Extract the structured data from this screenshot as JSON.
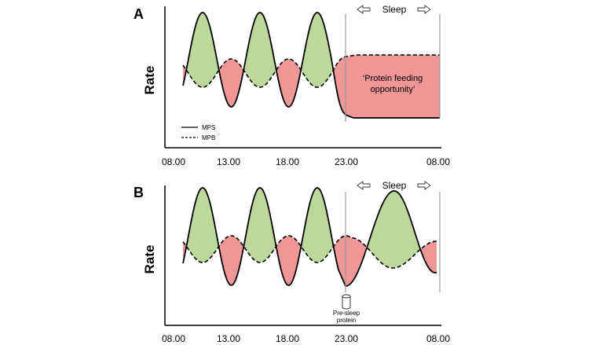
{
  "chart_data": [
    {
      "panel": "A",
      "type": "area",
      "ylabel": "Rate",
      "x_ticks": [
        "08.00",
        "13.00",
        "18.00",
        "23.00",
        "08.00"
      ],
      "sleep_label": "Sleep",
      "sleep_window": [
        "23.00",
        "08.00"
      ],
      "annotation": "‘Protein feeding opportunity’",
      "series": [
        {
          "name": "MPS",
          "line": "solid",
          "peaks": [
            "11.00",
            "15.30",
            "20.30"
          ],
          "troughs": [
            "13.00",
            "18.00"
          ],
          "during_sleep": "low"
        },
        {
          "name": "MPB",
          "line": "dashed",
          "peaks": [
            "13.00",
            "18.00"
          ],
          "troughs": [
            "11.00",
            "15.30",
            "20.30"
          ],
          "during_sleep": "high"
        }
      ],
      "fill_colors": {
        "MPS_above_MPB": "#bcd89b",
        "MPB_above_MPS": "#ef9797"
      },
      "legend": {
        "placement": "bottom-left",
        "entries": [
          "MPS",
          "MPB"
        ]
      }
    },
    {
      "panel": "B",
      "type": "area",
      "ylabel": "Rate",
      "x_ticks": [
        "08.00",
        "13.00",
        "18.00",
        "23.00",
        "08.00"
      ],
      "sleep_label": "Sleep",
      "sleep_window": [
        "23.00",
        "08.00"
      ],
      "marker_label": "Pre-sleep protein",
      "marker_label_lines": [
        "Pre-sleep",
        "protein"
      ],
      "marker_time": "23.00",
      "series": [
        {
          "name": "MPS",
          "line": "solid",
          "peaks": [
            "11.00",
            "15.30",
            "20.30",
            "03.30"
          ],
          "troughs": [
            "13.00",
            "18.00",
            "23.00"
          ],
          "during_sleep": "peak"
        },
        {
          "name": "MPB",
          "line": "dashed",
          "peaks": [
            "13.00",
            "18.00",
            "22.30"
          ],
          "troughs": [
            "11.00",
            "15.30",
            "20.30",
            "03.30"
          ],
          "during_sleep": "low"
        }
      ],
      "fill_colors": {
        "MPS_above_MPB": "#bcd89b",
        "MPB_above_MPS": "#ef9797"
      }
    }
  ]
}
